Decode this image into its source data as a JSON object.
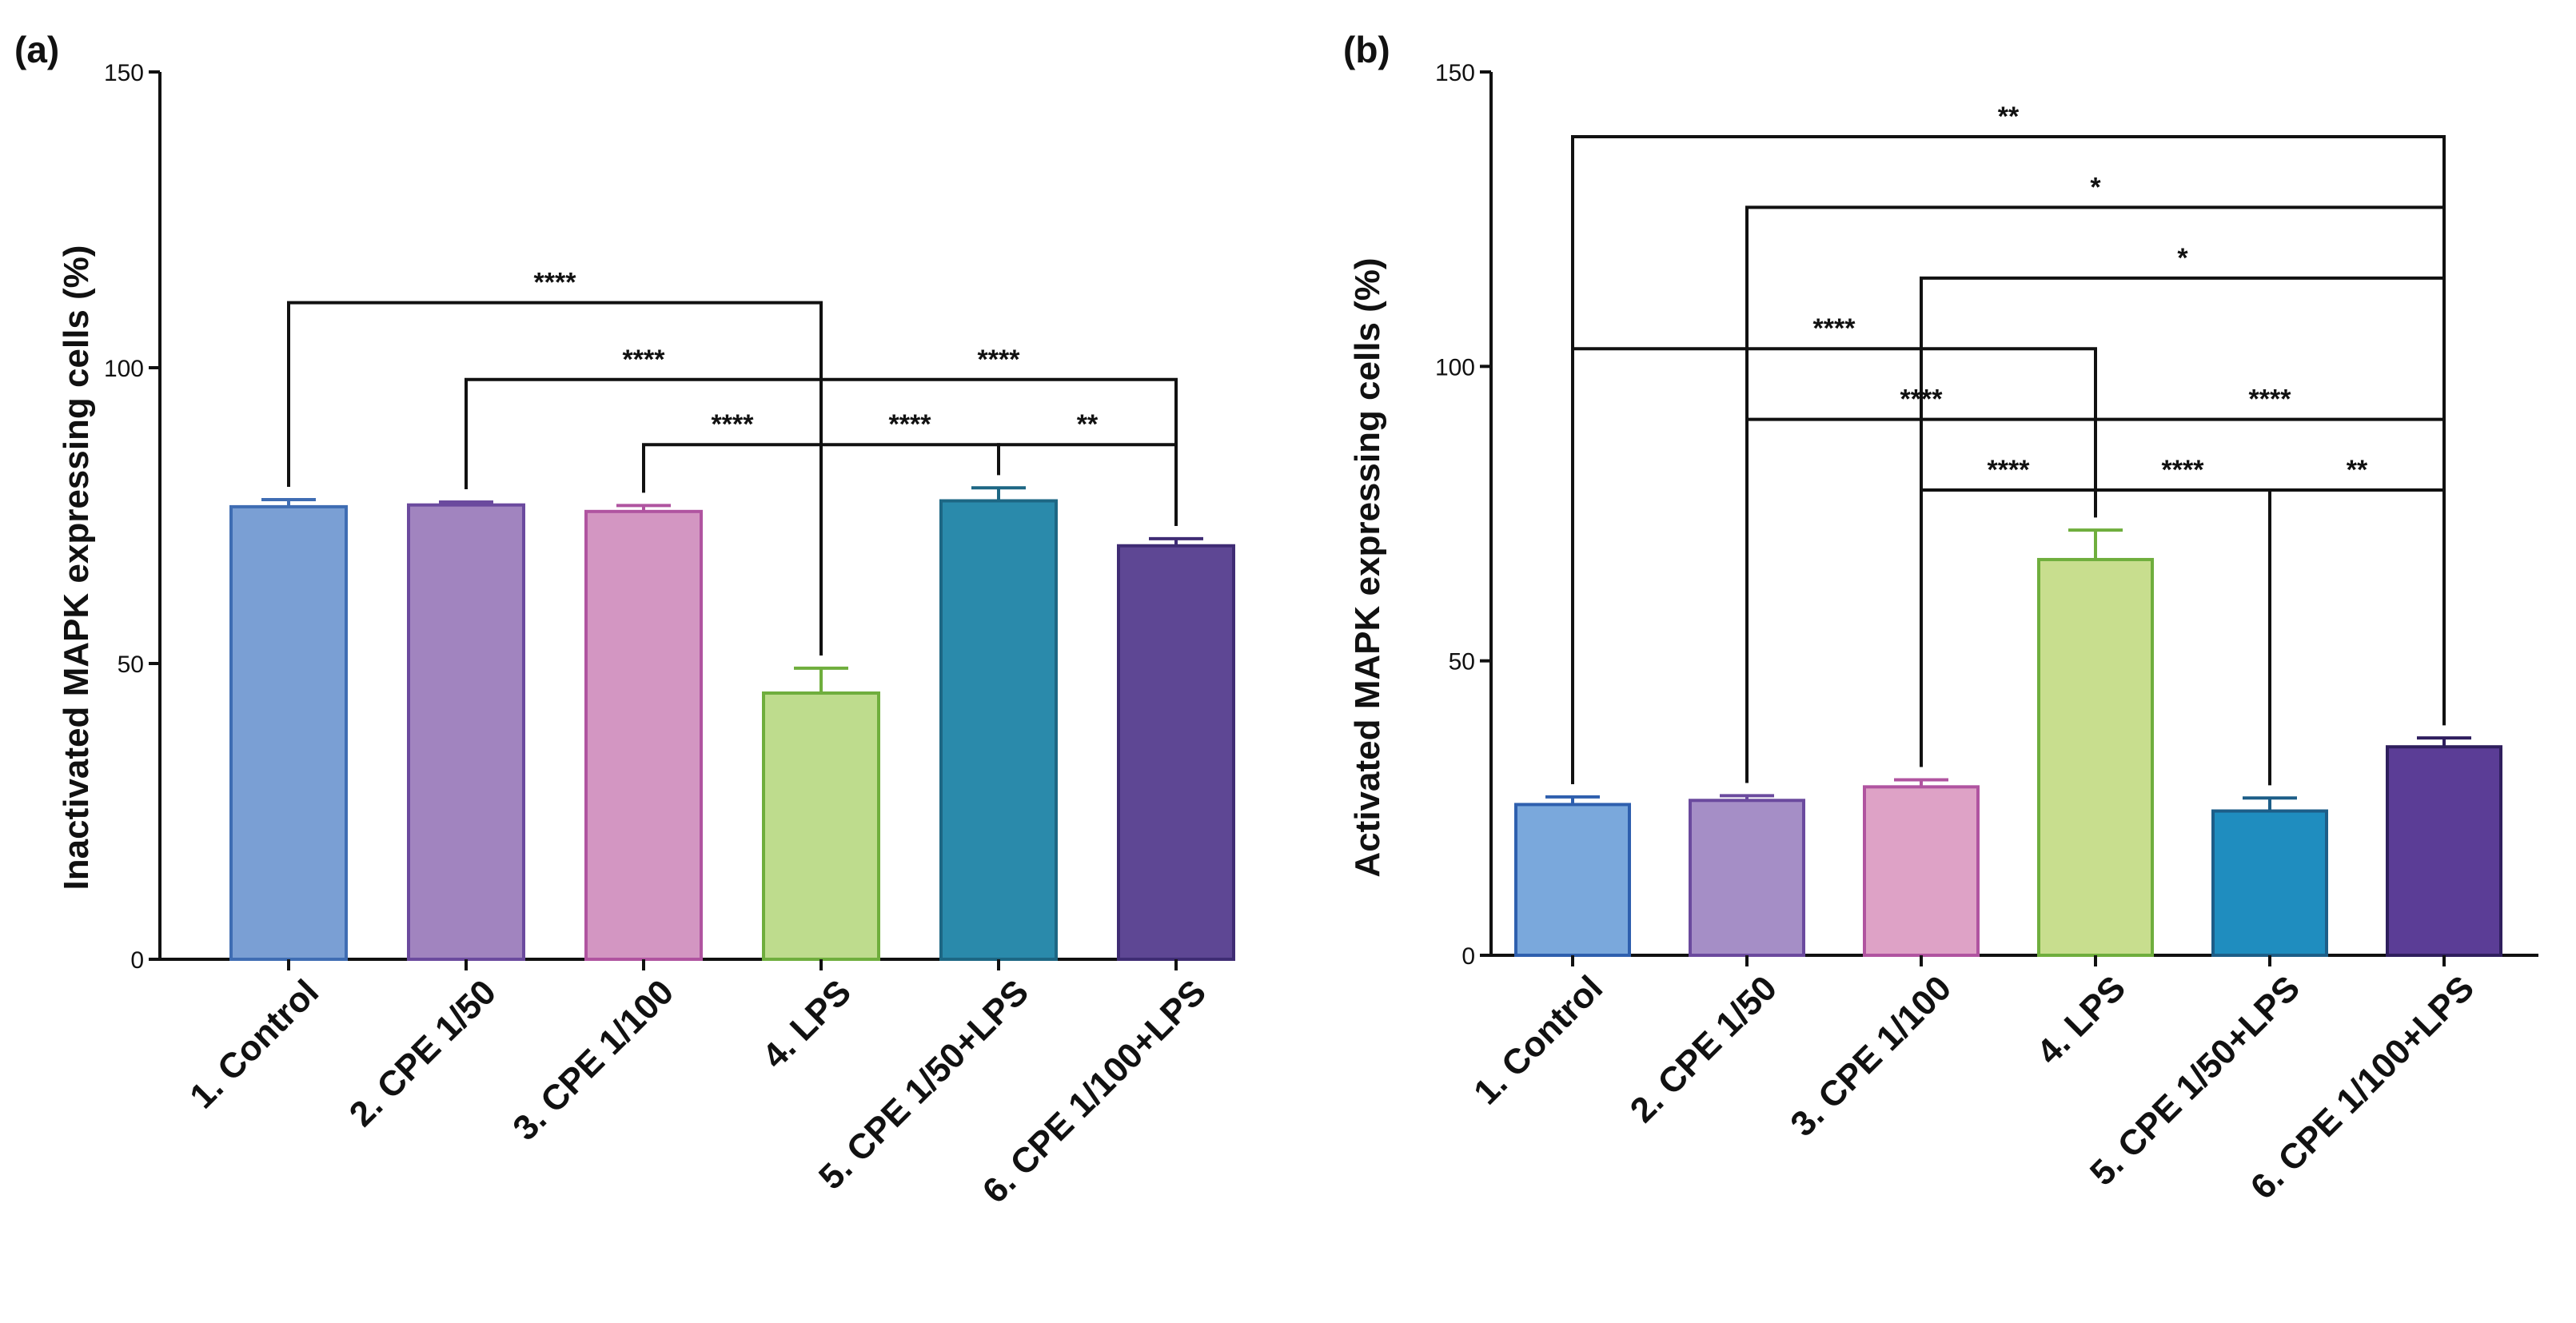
{
  "chart_data": [
    {
      "panel": "(a)",
      "type": "bar",
      "ylabel": "Inactivated MAPK expressing cells (%)",
      "ylim": [
        0,
        150
      ],
      "yticks": [
        0,
        50,
        100,
        150
      ],
      "categories": [
        "1. Control",
        "2. CPE 1/50",
        "3. CPE 1/100",
        "4. LPS",
        "5. CPE 1/50+LPS",
        "6. CPE 1/100+LPS"
      ],
      "values": [
        76.5,
        76.8,
        75.7,
        45.0,
        77.5,
        69.9
      ],
      "errors": [
        1.2,
        0.5,
        1.0,
        4.2,
        2.2,
        1.2
      ],
      "colors": {
        "fill": [
          "#7a9fd4",
          "#a184bf",
          "#d396c2",
          "#bedc8d",
          "#2a8aab",
          "#5e4794"
        ],
        "edge": [
          "#3f6db3",
          "#6b4a9e",
          "#b054a0",
          "#6fae3d",
          "#1d6784",
          "#3f2c74"
        ]
      },
      "significance": [
        {
          "from": 1,
          "to": 4,
          "label": "****",
          "y": 111
        },
        {
          "from": 2,
          "to": 4,
          "label": "****",
          "y": 98
        },
        {
          "from": 3,
          "to": 4,
          "label": "****",
          "y": 87
        },
        {
          "from": 4,
          "to": 6,
          "label": "****",
          "y": 98
        },
        {
          "from": 4,
          "to": 5,
          "label": "****",
          "y": 87
        },
        {
          "from": 5,
          "to": 6,
          "label": "**",
          "y": 87
        }
      ]
    },
    {
      "panel": "(b)",
      "type": "bar",
      "ylabel": "Activated MAPK expressing cells (%)",
      "ylim": [
        0,
        150
      ],
      "yticks": [
        0,
        50,
        100,
        150
      ],
      "categories": [
        "1. Control",
        "2. CPE 1/50",
        "3. CPE 1/100",
        "4. LPS",
        "5. CPE 1/50+LPS",
        "6. CPE 1/100+LPS"
      ],
      "values": [
        25.6,
        26.3,
        28.6,
        67.2,
        24.5,
        35.4
      ],
      "errors": [
        1.3,
        0.8,
        1.2,
        5.0,
        2.2,
        1.5
      ],
      "colors": {
        "fill": [
          "#7aa8dc",
          "#a58ec6",
          "#dea2c6",
          "#c8de8e",
          "#1f8dbf",
          "#5b3d96"
        ],
        "edge": [
          "#2e5fae",
          "#6b4a9e",
          "#b054a0",
          "#6fae3d",
          "#1d5e88",
          "#2f1f5e"
        ]
      },
      "significance": [
        {
          "from": 1,
          "to": 6,
          "label": "**",
          "y": 139
        },
        {
          "from": 2,
          "to": 6,
          "label": "*",
          "y": 127
        },
        {
          "from": 3,
          "to": 6,
          "label": "*",
          "y": 115
        },
        {
          "from": 1,
          "to": 4,
          "label": "****",
          "y": 103
        },
        {
          "from": 2,
          "to": 4,
          "label": "****",
          "y": 91
        },
        {
          "from": 4,
          "to": 6,
          "label": "****",
          "y": 91
        },
        {
          "from": 3,
          "to": 4,
          "label": "****",
          "y": 79
        },
        {
          "from": 4,
          "to": 5,
          "label": "****",
          "y": 79
        },
        {
          "from": 5,
          "to": 6,
          "label": "**",
          "y": 79
        }
      ]
    }
  ]
}
